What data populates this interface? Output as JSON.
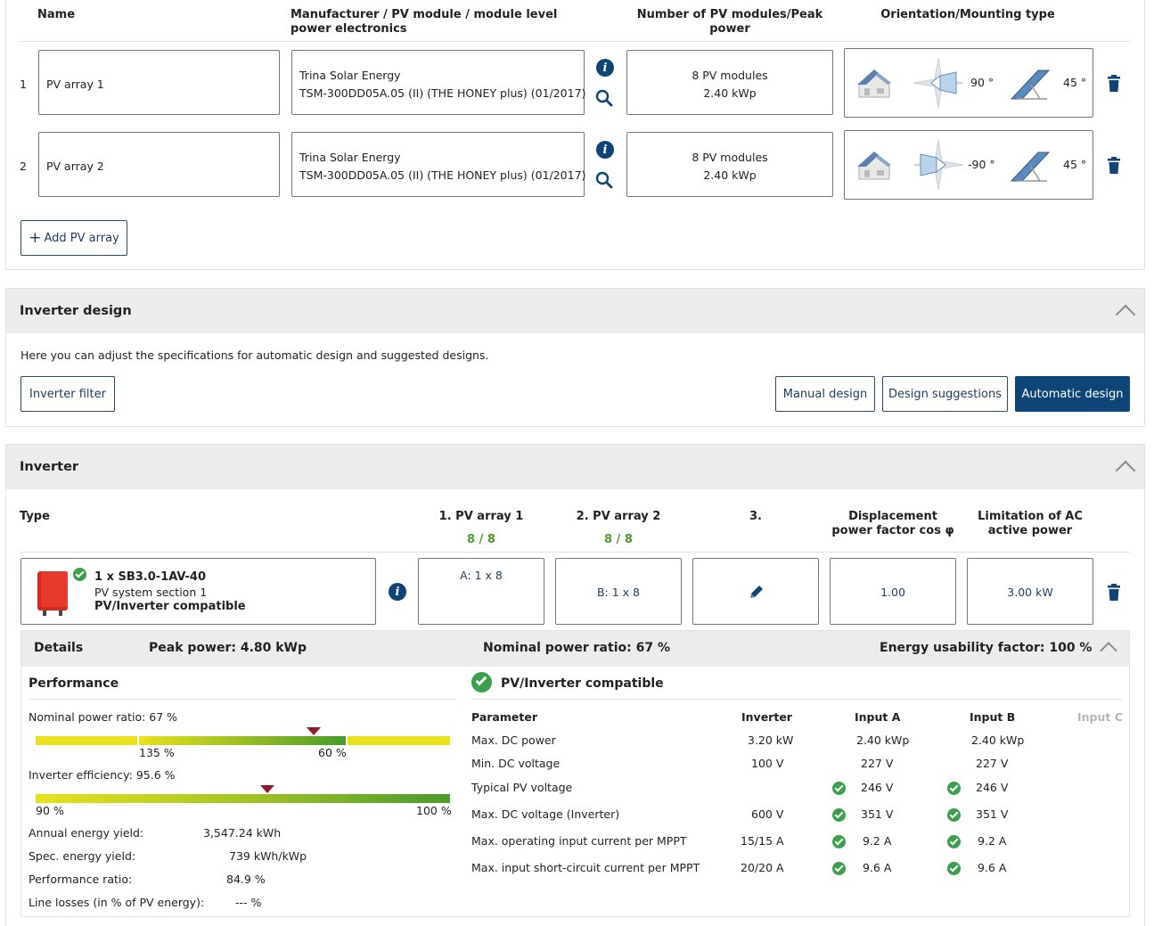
{
  "pv_table": {
    "headers": {
      "name": "Name",
      "manufacturer": "Manufacturer / PV module / module level power electronics",
      "modules": "Number of PV modules/Peak power",
      "orientation": "Orientation/Mounting type"
    },
    "rows": [
      {
        "index": "1",
        "name": "PV array 1",
        "manufacturer": "Trina Solar Energy",
        "module": "TSM-300DD05A.05 (II) (THE HONEY plus) (01/2017)",
        "modules": "8 PV modules",
        "peak": "2.40 kWp",
        "azimuth": "90 °",
        "tilt": "45 °"
      },
      {
        "index": "2",
        "name": "PV array 2",
        "manufacturer": "Trina Solar Energy",
        "module": "TSM-300DD05A.05 (II) (THE HONEY plus) (01/2017)",
        "modules": "8 PV modules",
        "peak": "2.40 kWp",
        "azimuth": "-90 °",
        "tilt": "45 °"
      }
    ],
    "add_button": "Add PV array"
  },
  "inverter_design": {
    "title": "Inverter design",
    "description": "Here you can adjust the specifications for automatic design and suggested designs.",
    "filter_button": "Inverter filter",
    "manual_button": "Manual design",
    "suggestions_button": "Design suggestions",
    "automatic_button": "Automatic design"
  },
  "inverter": {
    "title": "Inverter",
    "headers": {
      "type": "Type",
      "pv1": "1. PV array 1",
      "pv1_count": "8 / 8",
      "pv2": "2. PV array 2",
      "pv2_count": "8 / 8",
      "pv3": "3.",
      "cosphi": "Displacement power factor cos φ",
      "limit": "Limitation of AC active power"
    },
    "row": {
      "model": "1 x SB3.0-1AV-40",
      "section": "PV system section 1",
      "status": "PV/Inverter compatible",
      "input_a": "A: 1 x 8",
      "input_b": "B: 1 x 8",
      "cosphi": "1.00",
      "limit": "3.00 kW"
    },
    "details": {
      "label": "Details",
      "peak": "Peak power: 4.80 kWp",
      "ratio": "Nominal power ratio: 67 %",
      "usability": "Energy usability factor: 100 %"
    },
    "performance": {
      "title": "Performance",
      "ratio_label": "Nominal power ratio: 67 %",
      "ratio_marker": 0.67,
      "ratio_tick_left": "135 %",
      "ratio_tick_right": "60 %",
      "eff_label": "Inverter efficiency: 95.6 %",
      "eff_marker": 0.56,
      "eff_min": "90 %",
      "eff_max": "100 %",
      "stats": [
        {
          "label": "Annual energy yield:",
          "value": "3,547.24 kWh"
        },
        {
          "label": "Spec. energy yield:",
          "value": "739 kWh/kWp"
        },
        {
          "label": "Performance ratio:",
          "value": "84.9 %"
        },
        {
          "label": "Line losses (in % of PV energy):",
          "value": "--- %"
        }
      ]
    },
    "compat": {
      "title": "PV/Inverter compatible",
      "headers": [
        "Parameter",
        "Inverter",
        "Input A",
        "Input B",
        "Input C"
      ],
      "rows": [
        {
          "param": "Max. DC power",
          "inverter": "3.20 kW",
          "a": "2.40 kWp",
          "b": "2.40 kWp",
          "check": false
        },
        {
          "param": "Min. DC voltage",
          "inverter": "100 V",
          "a": "227 V",
          "b": "227 V",
          "check": false
        },
        {
          "param": "Typical PV voltage",
          "inverter": "",
          "a": "246 V",
          "b": "246 V",
          "check": true
        },
        {
          "param": "Max. DC voltage (Inverter)",
          "inverter": "600 V",
          "a": "351 V",
          "b": "351 V",
          "check": true
        },
        {
          "param": "Max. operating input current per MPPT",
          "inverter": "15/15 A",
          "a": "9.2 A",
          "b": "9.2 A",
          "check": true
        },
        {
          "param": "Max. input short-circuit current per MPPT",
          "inverter": "20/20 A",
          "a": "9.6 A",
          "b": "9.6 A",
          "check": true
        }
      ]
    }
  },
  "colors": {
    "navy": "#0f4576",
    "green": "#4a9a2c",
    "check": "#3aa04b",
    "bar_yellow": "#e8e21c",
    "bar_green": "#4a9a2c",
    "marker": "#8b1d2c"
  }
}
